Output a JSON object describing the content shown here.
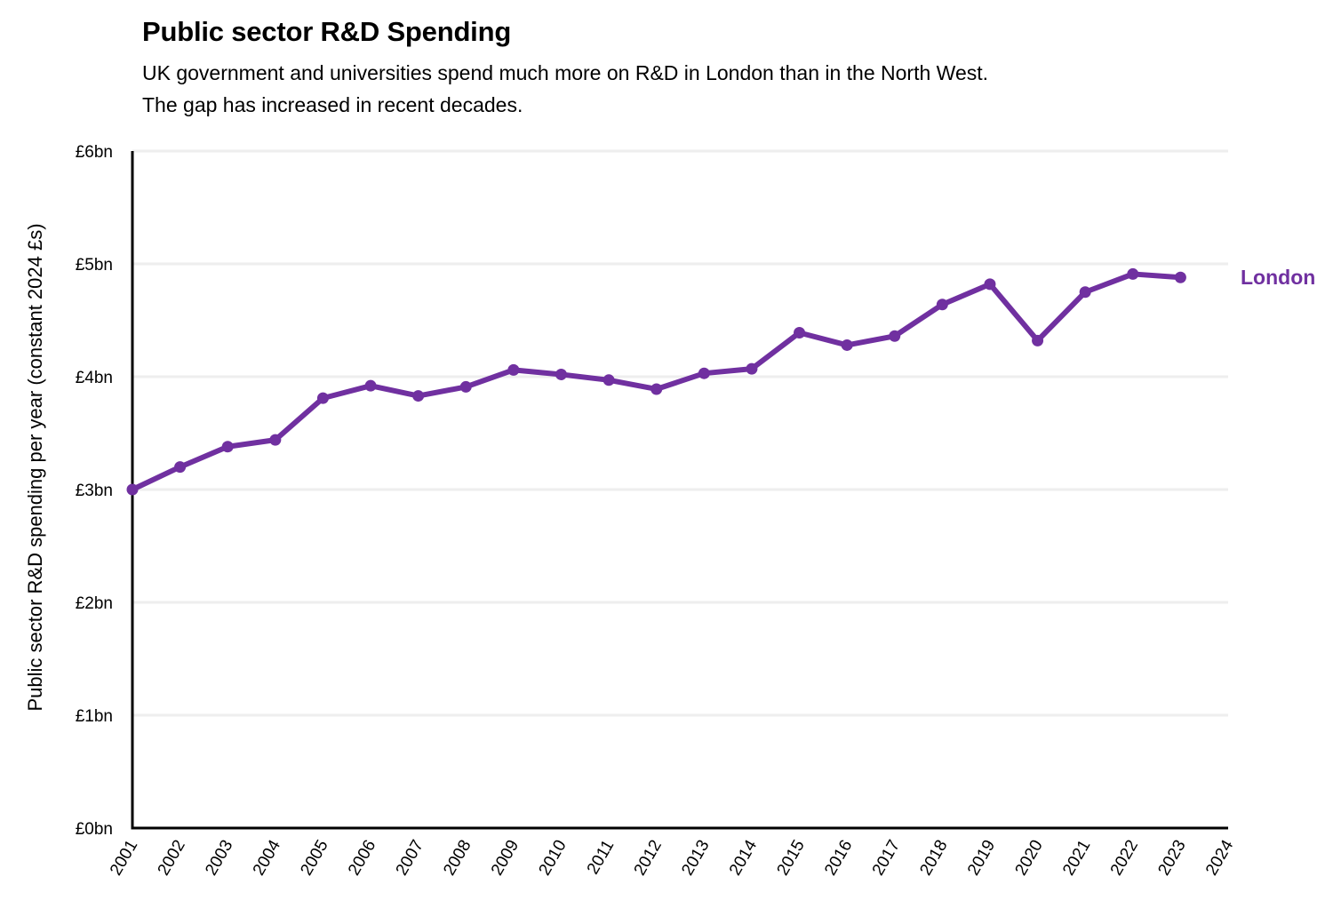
{
  "header": {
    "title": "Public sector R&D Spending",
    "subtitle_lines": [
      "UK government and universities spend much more on R&D in London than in the North West.",
      "The gap has increased in recent decades."
    ]
  },
  "chart_data": {
    "type": "line",
    "title": "Public sector R&D Spending",
    "subtitle": "UK government and universities spend much more on R&D in London than in the North West. The gap has increased in recent decades.",
    "xlabel": "",
    "ylabel": "Public sector R&D spending per year (constant 2024 £s)",
    "xlim": [
      2001,
      2024
    ],
    "ylim": [
      0,
      6
    ],
    "grid": true,
    "x_ticks": [
      "2001",
      "2002",
      "2003",
      "2004",
      "2005",
      "2006",
      "2007",
      "2008",
      "2009",
      "2010",
      "2011",
      "2012",
      "2013",
      "2014",
      "2015",
      "2016",
      "2017",
      "2018",
      "2019",
      "2020",
      "2021",
      "2022",
      "2023",
      "2024"
    ],
    "y_ticks": [
      {
        "value": 0,
        "label": "£0bn"
      },
      {
        "value": 1,
        "label": "£1bn"
      },
      {
        "value": 2,
        "label": "£2bn"
      },
      {
        "value": 3,
        "label": "£3bn"
      },
      {
        "value": 4,
        "label": "£4bn"
      },
      {
        "value": 5,
        "label": "£5bn"
      },
      {
        "value": 6,
        "label": "£6bn"
      }
    ],
    "x": [
      2001,
      2002,
      2003,
      2004,
      2005,
      2006,
      2007,
      2008,
      2009,
      2010,
      2011,
      2012,
      2013,
      2014,
      2015,
      2016,
      2017,
      2018,
      2019,
      2020,
      2021,
      2022,
      2023
    ],
    "series": [
      {
        "name": "London",
        "color": "#7030a0",
        "label_position": "end-right",
        "values": [
          3.0,
          3.2,
          3.38,
          3.44,
          3.81,
          3.92,
          3.83,
          3.91,
          4.06,
          4.02,
          3.97,
          3.89,
          4.03,
          4.07,
          4.39,
          4.28,
          4.36,
          4.64,
          4.82,
          4.32,
          4.75,
          4.91,
          4.88
        ]
      }
    ],
    "legend": "direct-label-right"
  }
}
